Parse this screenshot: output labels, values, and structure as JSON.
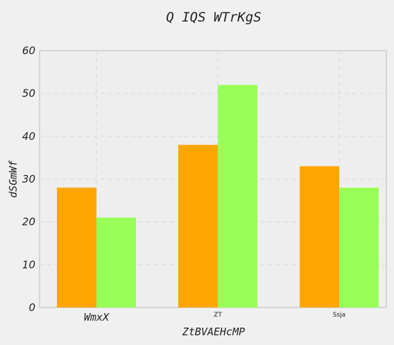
{
  "chart_data": {
    "type": "bar",
    "title": "Q IQS WTrKgS",
    "xlabel": "ZtBVAEHcMP",
    "ylabel": "dSGmWf",
    "categories": [
      "WmxX",
      "ZT",
      "Ssja"
    ],
    "series": [
      {
        "values": [
          28,
          38,
          33
        ],
        "color": "#ffa500"
      },
      {
        "values": [
          21,
          52,
          28
        ],
        "color": "#98ff58"
      }
    ],
    "ylim": [
      0,
      60
    ],
    "yticks": [
      0,
      10,
      20,
      30,
      40,
      50,
      60
    ],
    "grid": true,
    "legend": "none"
  }
}
